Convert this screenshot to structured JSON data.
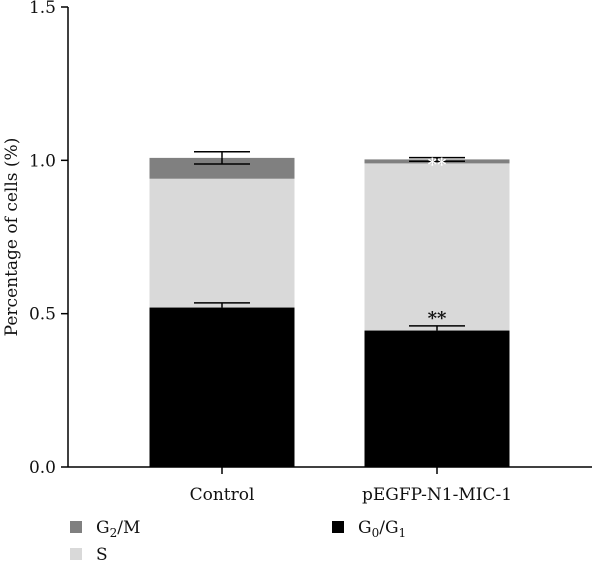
{
  "chart_data": {
    "type": "bar",
    "stacked": true,
    "categories": [
      "Control",
      "pEGFP-N1-MIC-1"
    ],
    "series": [
      {
        "name": "G0/G1",
        "values": [
          0.52,
          0.445
        ],
        "errors": [
          0.015,
          0.015
        ],
        "color": "#000000"
      },
      {
        "name": "S",
        "values": [
          0.42,
          0.545
        ],
        "errors": [
          0.0,
          0.0
        ],
        "color": "#d9d9d9"
      },
      {
        "name": "G2/M",
        "values": [
          0.068,
          0.013
        ],
        "errors": [
          0.02,
          0.006
        ],
        "color": "#808080"
      }
    ],
    "ylabel": "Percentage of cells (%)",
    "xlabel": "",
    "ylim": [
      0,
      1.5
    ],
    "yticks": [
      "0.0",
      "0.5",
      "1.0",
      "1.5"
    ],
    "annotations": [
      {
        "category": "pEGFP-N1-MIC-1",
        "series": "G0/G1",
        "text": "**"
      },
      {
        "category": "pEGFP-N1-MIC-1",
        "series": "G2/M",
        "text": "**"
      }
    ],
    "grid": false,
    "legend_placement": "bottom"
  },
  "legend": {
    "items": [
      {
        "main": "G",
        "sub": "2",
        "rest": "/M",
        "rest_sub": "",
        "color": "#808080"
      },
      {
        "main": "G",
        "sub": "0",
        "rest": "/G",
        "rest_sub": "1",
        "color": "#000000"
      },
      {
        "main": "S",
        "sub": "",
        "rest": "",
        "rest_sub": "",
        "color": "#d9d9d9"
      }
    ]
  }
}
